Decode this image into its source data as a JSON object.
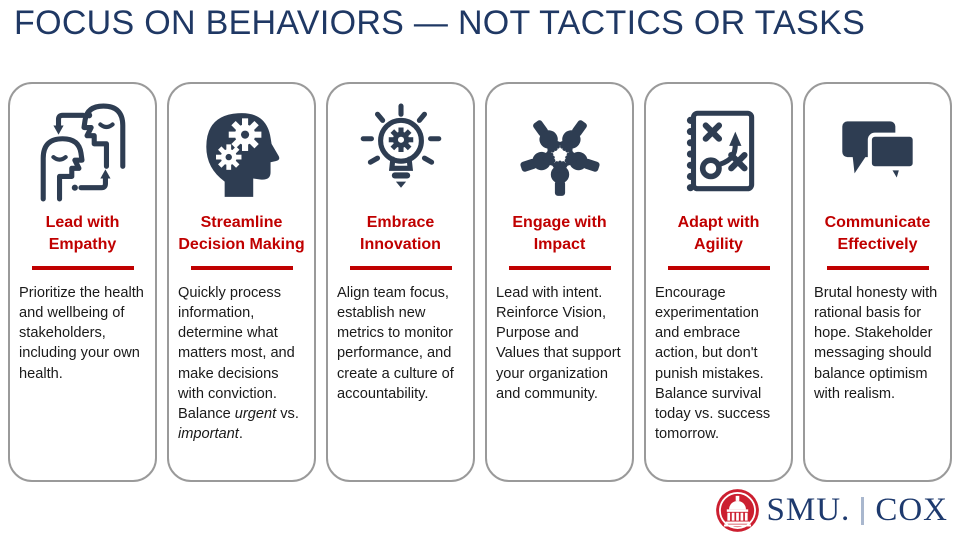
{
  "title": "FOCUS ON BEHAVIORS — NOT TACTICS OR TASKS",
  "colors": {
    "title_navy": "#1F3864",
    "icon_navy": "#2E3D52",
    "heading_red": "#C00000",
    "card_border": "#9A9A9A",
    "body_text": "#1A1A1A",
    "logo_red": "#CC1F30",
    "logo_navy": "#1E3A6E",
    "logo_divider": "#A9B7CE"
  },
  "cards": [
    {
      "icon": "empathy-heads-icon",
      "title": "Lead with Empathy",
      "body": [
        {
          "text": "Prioritize the health and wellbeing of stakeholders, including your own health."
        }
      ]
    },
    {
      "icon": "head-gears-icon",
      "title": "Streamline Decision Making",
      "body": [
        {
          "text": "Quickly process information, determine what matters most, and make decisions with conviction. Balance "
        },
        {
          "text": "urgent",
          "italic": true
        },
        {
          "text": " vs. "
        },
        {
          "text": "important",
          "italic": true
        },
        {
          "text": "."
        }
      ]
    },
    {
      "icon": "lightbulb-gear-icon",
      "title": "Embrace Innovation",
      "body": [
        {
          "text": "Align team focus, establish new metrics to monitor performance, and create a culture of accountability."
        }
      ]
    },
    {
      "icon": "hands-together-icon",
      "title": "Engage with Impact",
      "body": [
        {
          "text": "Lead with intent. Reinforce Vision, Purpose and Values that support your organization and community."
        }
      ]
    },
    {
      "icon": "strategy-playbook-icon",
      "title": "Adapt with Agility",
      "body": [
        {
          "text": "Encourage experimentation and embrace action, but don't punish mistakes. Balance survival today vs. success tomorrow."
        }
      ]
    },
    {
      "icon": "speech-bubbles-icon",
      "title": "Communicate Effectively",
      "body": [
        {
          "text": "Brutal honesty with rational basis for hope. Stakeholder messaging should balance optimism with realism."
        }
      ]
    }
  ],
  "logo": {
    "smu": "SMU.",
    "cox": "COX"
  }
}
